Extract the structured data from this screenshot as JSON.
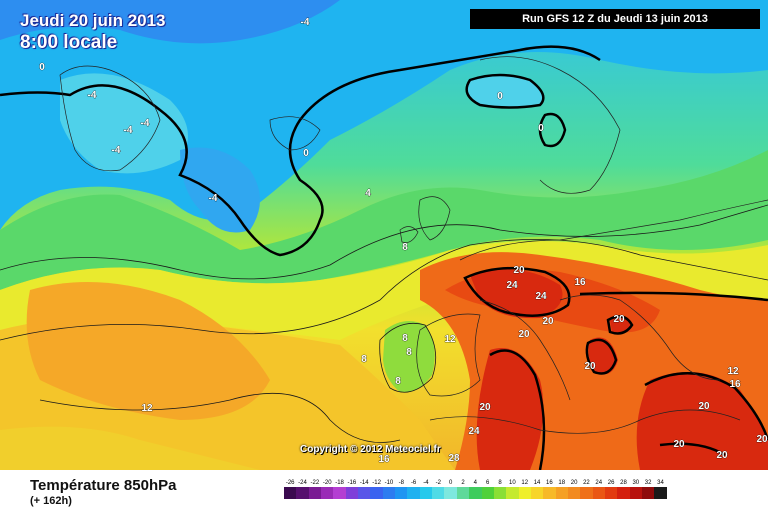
{
  "title": {
    "line1": "Jeudi 20 juin 2013",
    "line2": "8:00 locale"
  },
  "run_info": "Run GFS 12 Z du Jeudi 13 juin 2013",
  "copyright": "Copyright © 2012 Meteociel.fr",
  "footer": {
    "field": "Température 850hPa",
    "lead": "(+ 162h)"
  },
  "contour_labels": [
    {
      "text": "-4"
    },
    {
      "text": "0"
    },
    {
      "text": "-4"
    },
    {
      "text": "-4"
    },
    {
      "text": "-4"
    },
    {
      "text": "-4"
    },
    {
      "text": "0"
    },
    {
      "text": "0"
    },
    {
      "text": "0"
    },
    {
      "text": "-4"
    },
    {
      "text": "4"
    },
    {
      "text": "8"
    },
    {
      "text": "8"
    },
    {
      "text": "8"
    },
    {
      "text": "8"
    },
    {
      "text": "8"
    },
    {
      "text": "12"
    },
    {
      "text": "12"
    },
    {
      "text": "16"
    },
    {
      "text": "16"
    },
    {
      "text": "20"
    },
    {
      "text": "24"
    },
    {
      "text": "24"
    },
    {
      "text": "20"
    },
    {
      "text": "20"
    },
    {
      "text": "20"
    },
    {
      "text": "20"
    },
    {
      "text": "20"
    },
    {
      "text": "24"
    },
    {
      "text": "20"
    },
    {
      "text": "20"
    },
    {
      "text": "20"
    },
    {
      "text": "28"
    },
    {
      "text": "12"
    },
    {
      "text": "16"
    },
    {
      "text": "20"
    }
  ],
  "scale": {
    "labels": [
      "-26",
      "-24",
      "-22",
      "-20",
      "-18",
      "-16",
      "-14",
      "-12",
      "-10",
      "-8",
      "-6",
      "-4",
      "-2",
      "0",
      "2",
      "4",
      "6",
      "8",
      "10",
      "12",
      "14",
      "16",
      "18",
      "20",
      "22",
      "24",
      "26",
      "28",
      "30",
      "32",
      "34"
    ],
    "colors": [
      "#3b0a4f",
      "#56106e",
      "#7a1b93",
      "#9a2bb6",
      "#b43ed2",
      "#7f3fd9",
      "#5a55e8",
      "#3a63f0",
      "#2d7cf0",
      "#1f95f2",
      "#1fb1f0",
      "#26c9ec",
      "#4fdbe6",
      "#7de8de",
      "#5fd99a",
      "#3ecc5d",
      "#4fd13a",
      "#8adf35",
      "#c5ea2f",
      "#efef2b",
      "#f7d52a",
      "#f7b928",
      "#f5a024",
      "#f28a1f",
      "#ef7019",
      "#ea5714",
      "#e23b10",
      "#d4200e",
      "#b8120d",
      "#8e0b0b",
      "#1a1a1a"
    ]
  }
}
